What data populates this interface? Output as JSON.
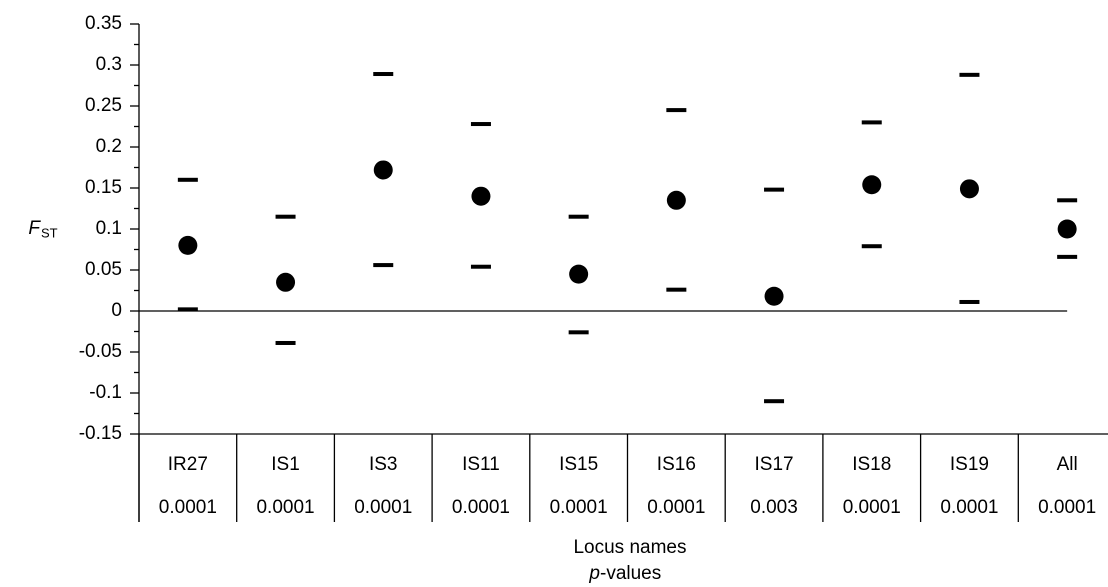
{
  "chart_data": {
    "type": "interval-dot",
    "y_label": "F",
    "y_label_sub": "ST",
    "x_label": "Locus names",
    "x_label_2_italic": "p",
    "x_label_2": "-values",
    "categories": [
      "IR27",
      "IS1",
      "IS3",
      "IS11",
      "IS15",
      "IS16",
      "IS17",
      "IS18",
      "IS19",
      "All"
    ],
    "p_values": [
      "0.0001",
      "0.0001",
      "0.0001",
      "0.0001",
      "0.0001",
      "0.0001",
      "0.003",
      "0.0001",
      "0.0001",
      "0.0001"
    ],
    "values": [
      0.08,
      0.035,
      0.172,
      0.14,
      0.045,
      0.135,
      0.018,
      0.154,
      0.149,
      0.1
    ],
    "upper": [
      0.16,
      0.115,
      0.289,
      0.228,
      0.115,
      0.245,
      0.148,
      0.23,
      0.288,
      0.135
    ],
    "lower": [
      0.002,
      -0.039,
      0.056,
      0.054,
      -0.026,
      0.026,
      -0.11,
      0.079,
      0.011,
      0.066
    ],
    "color": "#000000",
    "ylim": [
      -0.15,
      0.35
    ],
    "yticks": [
      -0.15,
      -0.1,
      -0.05,
      0,
      0.05,
      0.1,
      0.15,
      0.2,
      0.25,
      0.3,
      0.35
    ],
    "minor_yticks": [
      -0.125,
      -0.075,
      -0.025,
      0.025,
      0.075,
      0.125,
      0.175,
      0.225,
      0.275,
      0.325
    ]
  }
}
